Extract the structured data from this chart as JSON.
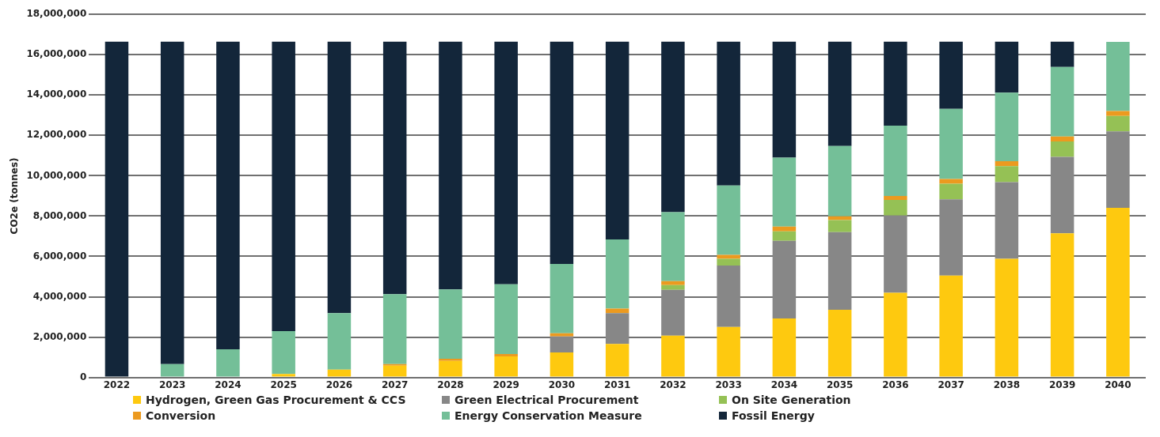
{
  "chart_data": {
    "type": "bar",
    "stacked": true,
    "ylabel": "CO2e (tonnes)",
    "categories": [
      "2022",
      "2023",
      "2024",
      "2025",
      "2026",
      "2027",
      "2028",
      "2029",
      "2030",
      "2031",
      "2032",
      "2033",
      "2034",
      "2035",
      "2036",
      "2037",
      "2038",
      "2039",
      "2040"
    ],
    "series": [
      {
        "name": "Hydrogen, Green Gas Procurement & CCS",
        "color": "#fec90f",
        "values": [
          0,
          0,
          0,
          170000,
          390000,
          580000,
          820000,
          1040000,
          1240000,
          1660000,
          2070000,
          2500000,
          2920000,
          3350000,
          4200000,
          5050000,
          5880000,
          7140000,
          8410000
        ]
      },
      {
        "name": "Green Electrical Procurement",
        "color": "#878787",
        "values": [
          0,
          0,
          0,
          0,
          0,
          0,
          0,
          0,
          790000,
          1530000,
          2270000,
          3050000,
          3850000,
          3850000,
          3830000,
          3780000,
          3800000,
          3800000,
          3790000
        ]
      },
      {
        "name": "On Site Generation",
        "color": "#95c155",
        "values": [
          0,
          0,
          0,
          0,
          0,
          0,
          0,
          0,
          0,
          0,
          240000,
          330000,
          470000,
          600000,
          770000,
          770000,
          800000,
          760000,
          760000
        ]
      },
      {
        "name": "Conversion",
        "color": "#ec9a1f",
        "values": [
          0,
          0,
          0,
          0,
          0,
          80000,
          100000,
          120000,
          160000,
          220000,
          190000,
          200000,
          240000,
          190000,
          200000,
          240000,
          240000,
          240000,
          250000
        ]
      },
      {
        "name": "Energy Conservation Measure",
        "color": "#74bf98",
        "values": [
          0,
          660000,
          1390000,
          2130000,
          2800000,
          3470000,
          3440000,
          3460000,
          3440000,
          3430000,
          3420000,
          3440000,
          3420000,
          3480000,
          3480000,
          3480000,
          3400000,
          3450000,
          3430000
        ]
      },
      {
        "name": "Fossil Energy",
        "color": "#13263a",
        "values": [
          16650000,
          15990000,
          15260000,
          14350000,
          13460000,
          12520000,
          12290000,
          12030000,
          11020000,
          9810000,
          8460000,
          7130000,
          5750000,
          5180000,
          4170000,
          3330000,
          2530000,
          1260000,
          0
        ]
      }
    ],
    "ylim": [
      0,
      18000000
    ],
    "yticks": [
      0,
      {
        "value": 2000000,
        "label": "2,000,000"
      },
      {
        "value": 4000000,
        "label": "4,000,000"
      },
      {
        "value": 6000000,
        "label": "6,000,000"
      },
      {
        "value": 8000000,
        "label": "8,000,000"
      },
      {
        "value": 10000000,
        "label": "10,000,000"
      },
      {
        "value": 12000000,
        "label": "12,000,000"
      },
      {
        "value": 14000000,
        "label": "14,000,000"
      },
      {
        "value": 16000000,
        "label": "16,000,000"
      },
      {
        "value": 18000000,
        "label": "18,000,000"
      }
    ],
    "grid": "y",
    "legend": "bottom"
  }
}
